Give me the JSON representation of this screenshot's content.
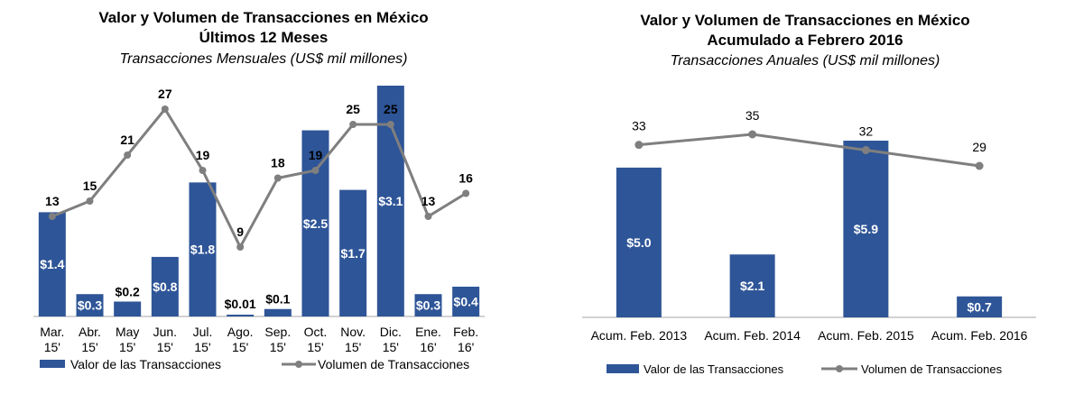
{
  "colors": {
    "bar": "#2e5597",
    "line": "#7f7f7f",
    "axis": "#a6a6a6"
  },
  "chart_data": [
    {
      "type": "bar",
      "title": "Valor y Volumen de Transacciones en México",
      "subtitle_line2": "Últimos 12 Meses",
      "subtitle": "Transacciones Mensuales (US$ mil millones)",
      "categories": [
        [
          "Mar.",
          "15'"
        ],
        [
          "Abr.",
          "15'"
        ],
        [
          "May",
          "15'"
        ],
        [
          "Jun.",
          "15'"
        ],
        [
          "Jul.",
          "15'"
        ],
        [
          "Ago.",
          "15'"
        ],
        [
          "Sep.",
          "15'"
        ],
        [
          "Oct.",
          "15'"
        ],
        [
          "Nov.",
          "15'"
        ],
        [
          "Dic.",
          "15'"
        ],
        [
          "Ene.",
          "16'"
        ],
        [
          "Feb.",
          "16'"
        ]
      ],
      "series": [
        {
          "name": "Valor de las Transacciones",
          "type": "bar",
          "values": [
            1.4,
            0.3,
            0.2,
            0.8,
            1.8,
            0.01,
            0.1,
            2.5,
            1.7,
            3.1,
            0.3,
            0.4
          ],
          "labels": [
            "$1.4",
            "$0.3",
            "$0.2",
            "$0.8",
            "$1.8",
            "$0.01",
            "$0.1",
            "$2.5",
            "$1.7",
            "$3.1",
            "$0.3",
            "$0.4"
          ]
        },
        {
          "name": "Volumen de Transacciones",
          "type": "line",
          "values": [
            13,
            15,
            21,
            27,
            19,
            9,
            18,
            19,
            25,
            25,
            13,
            16
          ],
          "labels": [
            "13",
            "15",
            "21",
            "27",
            "19",
            "9",
            "18",
            "19",
            "25",
            "25",
            "13",
            "16"
          ]
        }
      ],
      "legend_placement": "bottom",
      "grid": false
    },
    {
      "type": "bar",
      "title": "Valor y Volumen de Transacciones en México",
      "subtitle_line2": "Acumulado a Febrero 2016",
      "subtitle": "Transacciones Anuales (US$ mil millones)",
      "categories": [
        "Acum. Feb. 2013",
        "Acum. Feb. 2014",
        "Acum. Feb. 2015",
        "Acum. Feb. 2016"
      ],
      "series": [
        {
          "name": "Valor de las Transacciones",
          "type": "bar",
          "values": [
            5.0,
            2.1,
            5.9,
            0.7
          ],
          "labels": [
            "$5.0",
            "$2.1",
            "$5.9",
            "$0.7"
          ]
        },
        {
          "name": "Volumen de Transacciones",
          "type": "line",
          "values": [
            33,
            35,
            32,
            29
          ],
          "labels": [
            "33",
            "35",
            "32",
            "29"
          ]
        }
      ],
      "legend_placement": "bottom",
      "grid": false
    }
  ]
}
